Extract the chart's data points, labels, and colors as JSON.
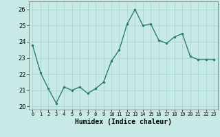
{
  "x": [
    0,
    1,
    2,
    3,
    4,
    5,
    6,
    7,
    8,
    9,
    10,
    11,
    12,
    13,
    14,
    15,
    16,
    17,
    18,
    19,
    20,
    21,
    22,
    23
  ],
  "y": [
    23.8,
    22.1,
    21.1,
    20.2,
    21.2,
    21.0,
    21.2,
    20.8,
    21.1,
    21.5,
    22.8,
    23.5,
    25.1,
    26.0,
    25.0,
    25.1,
    24.1,
    23.9,
    24.3,
    24.5,
    23.1,
    22.9,
    22.9,
    22.9
  ],
  "line_color": "#2d7d6e",
  "marker": ".",
  "markersize": 3,
  "linewidth": 1.0,
  "xlabel": "Humidex (Indice chaleur)",
  "xlabel_fontsize": 7,
  "xlabel_fontweight": "bold",
  "ytick_fontsize": 6,
  "xtick_fontsize": 5,
  "ylim": [
    19.8,
    26.5
  ],
  "xlim": [
    -0.5,
    23.5
  ],
  "yticks": [
    20,
    21,
    22,
    23,
    24,
    25,
    26
  ],
  "xticks": [
    0,
    1,
    2,
    3,
    4,
    5,
    6,
    7,
    8,
    9,
    10,
    11,
    12,
    13,
    14,
    15,
    16,
    17,
    18,
    19,
    20,
    21,
    22,
    23
  ],
  "grid_color": "#a8d8d0",
  "bg_color": "#c8eae6",
  "spine_color": "#666666"
}
